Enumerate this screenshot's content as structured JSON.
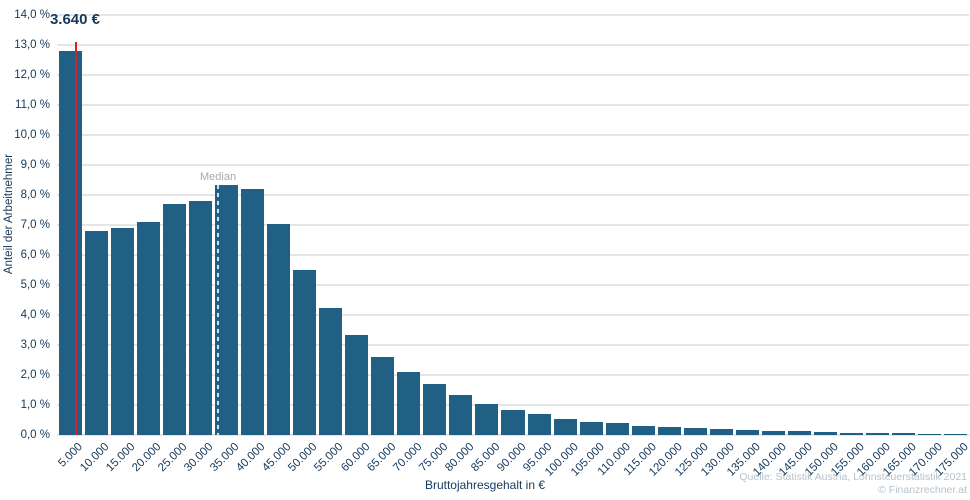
{
  "chart_data": {
    "type": "bar",
    "title": "",
    "xlabel": "Bruttojahresgehalt in €",
    "ylabel": "Anteil der Arbeitnehmer",
    "ylim": [
      0,
      14
    ],
    "grid": true,
    "legend": false,
    "x_axis_max_value": 175000,
    "categories": [
      "5.000",
      "10.000",
      "15.000",
      "20.000",
      "25.000",
      "30.000",
      "35.000",
      "40.000",
      "45.000",
      "50.000",
      "55.000",
      "60.000",
      "65.000",
      "70.000",
      "75.000",
      "80.000",
      "85.000",
      "90.000",
      "95.000",
      "100.000",
      "105.000",
      "110.000",
      "115.000",
      "120.000",
      "125.000",
      "130.000",
      "135.000",
      "140.000",
      "145.000",
      "150.000",
      "155.000",
      "160.000",
      "165.000",
      "170.000",
      "175.000"
    ],
    "values": [
      12.8,
      6.8,
      6.9,
      7.1,
      7.7,
      7.8,
      8.35,
      8.2,
      7.05,
      5.5,
      4.25,
      3.35,
      2.6,
      2.1,
      1.7,
      1.35,
      1.05,
      0.85,
      0.7,
      0.55,
      0.45,
      0.4,
      0.3,
      0.27,
      0.22,
      0.2,
      0.16,
      0.13,
      0.12,
      0.1,
      0.08,
      0.07,
      0.06,
      0.04,
      0.03
    ],
    "yticks": [
      "0,0 %",
      "1,0 %",
      "2,0 %",
      "3,0 %",
      "4,0 %",
      "5,0 %",
      "6,0 %",
      "7,0 %",
      "8,0 %",
      "9,0 %",
      "10,0 %",
      "11,0 %",
      "12,0 %",
      "13,0 %",
      "14,0 %"
    ],
    "marker": {
      "label": "3.640 €",
      "value": 3640
    },
    "median": {
      "label": "Median"
    }
  },
  "footer": {
    "source": "Quelle: Statistik Austria, Lohnsteuerstatistik 2021",
    "copyright": "© Finanzrechner.at"
  },
  "colors": {
    "bar": "#206085",
    "marker_line": "#d0222f",
    "median_line": "#cfe2ef",
    "median_text": "#a6a9ac",
    "axis_text": "#15395c",
    "grid": "#e5e5e5",
    "source_text": "#b6c2cb"
  }
}
